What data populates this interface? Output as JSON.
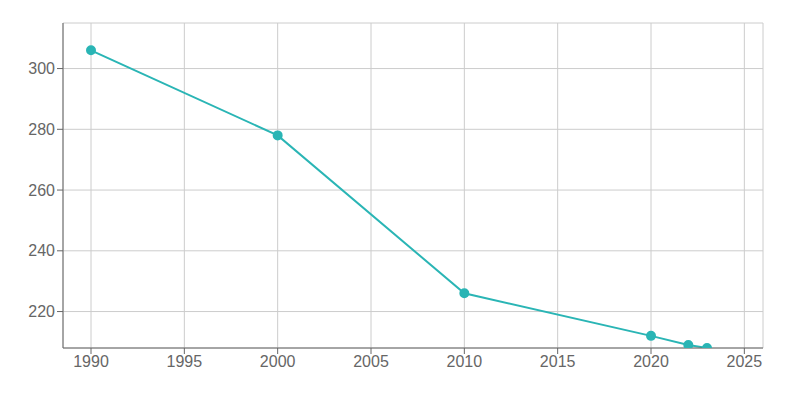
{
  "chart_data": {
    "type": "line",
    "x": [
      1990,
      2000,
      2010,
      2020,
      2022,
      2023
    ],
    "values": [
      306,
      278,
      226,
      212,
      209,
      208
    ],
    "color": "#2ab5b5",
    "marker": "circle",
    "xlim": [
      1988.5,
      2026
    ],
    "ylim": [
      208,
      315
    ],
    "xticks": [
      1990,
      1995,
      2000,
      2005,
      2010,
      2015,
      2020,
      2025
    ],
    "yticks": [
      220,
      240,
      260,
      280,
      300
    ],
    "grid": true
  }
}
